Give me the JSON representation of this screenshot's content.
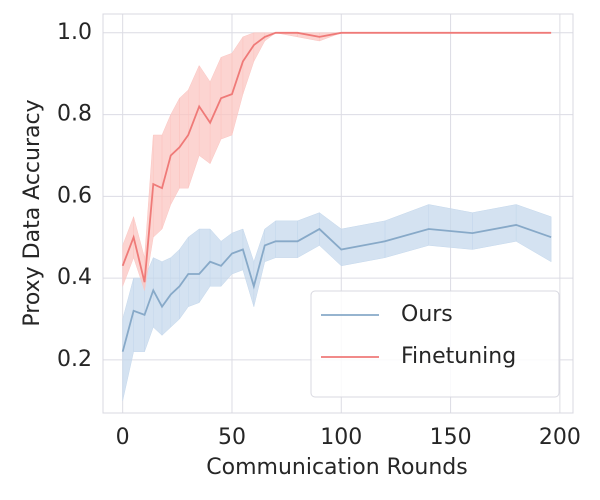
{
  "chart_data": {
    "type": "line",
    "xlabel": "Communication Rounds",
    "ylabel": "Proxy Data Accuracy",
    "x": [
      0,
      5,
      10,
      14,
      18,
      22,
      26,
      30,
      35,
      40,
      45,
      50,
      55,
      60,
      65,
      70,
      80,
      90,
      100,
      120,
      140,
      160,
      180,
      196
    ],
    "series": [
      {
        "name": "Ours",
        "color": "#87a9c8",
        "band_color": "#c5d8ec",
        "values": [
          0.22,
          0.32,
          0.31,
          0.37,
          0.33,
          0.36,
          0.38,
          0.41,
          0.41,
          0.44,
          0.43,
          0.46,
          0.47,
          0.38,
          0.48,
          0.49,
          0.49,
          0.52,
          0.47,
          0.49,
          0.52,
          0.51,
          0.53,
          0.5
        ],
        "lower": [
          0.1,
          0.22,
          0.22,
          0.28,
          0.26,
          0.28,
          0.3,
          0.33,
          0.34,
          0.38,
          0.38,
          0.41,
          0.42,
          0.33,
          0.44,
          0.45,
          0.45,
          0.48,
          0.43,
          0.45,
          0.48,
          0.47,
          0.49,
          0.44
        ],
        "upper": [
          0.3,
          0.4,
          0.4,
          0.45,
          0.44,
          0.45,
          0.47,
          0.5,
          0.52,
          0.52,
          0.49,
          0.51,
          0.52,
          0.44,
          0.52,
          0.54,
          0.54,
          0.56,
          0.52,
          0.54,
          0.58,
          0.56,
          0.58,
          0.55
        ]
      },
      {
        "name": "Finetuning",
        "color": "#ef7a78",
        "band_color": "#fbc6c2",
        "values": [
          0.43,
          0.5,
          0.39,
          0.63,
          0.62,
          0.7,
          0.72,
          0.75,
          0.82,
          0.78,
          0.84,
          0.85,
          0.93,
          0.97,
          0.99,
          1.0,
          1.0,
          0.99,
          1.0,
          1.0,
          1.0,
          1.0,
          1.0,
          1.0
        ],
        "lower": [
          0.38,
          0.45,
          0.37,
          0.5,
          0.52,
          0.58,
          0.62,
          0.62,
          0.7,
          0.68,
          0.74,
          0.75,
          0.85,
          0.93,
          0.98,
          1.0,
          0.99,
          0.98,
          1.0,
          1.0,
          1.0,
          1.0,
          1.0,
          1.0
        ],
        "upper": [
          0.48,
          0.55,
          0.45,
          0.75,
          0.75,
          0.8,
          0.84,
          0.86,
          0.92,
          0.88,
          0.94,
          0.95,
          0.99,
          1.0,
          1.0,
          1.0,
          1.0,
          1.0,
          1.0,
          1.0,
          1.0,
          1.0,
          1.0,
          1.0
        ]
      }
    ],
    "xlim": [
      -9,
      206
    ],
    "ylim": [
      0.07,
      1.046
    ],
    "xticks": [
      0,
      50,
      100,
      150,
      200
    ],
    "yticks": [
      {
        "value": 0.2,
        "label": "0.2"
      },
      {
        "value": 0.4,
        "label": "0.4"
      },
      {
        "value": 0.6,
        "label": "0.6"
      },
      {
        "value": 0.8,
        "label": "0.8"
      },
      {
        "value": 1.0,
        "label": "1.0"
      }
    ],
    "grid": true,
    "legend": "lower right"
  }
}
